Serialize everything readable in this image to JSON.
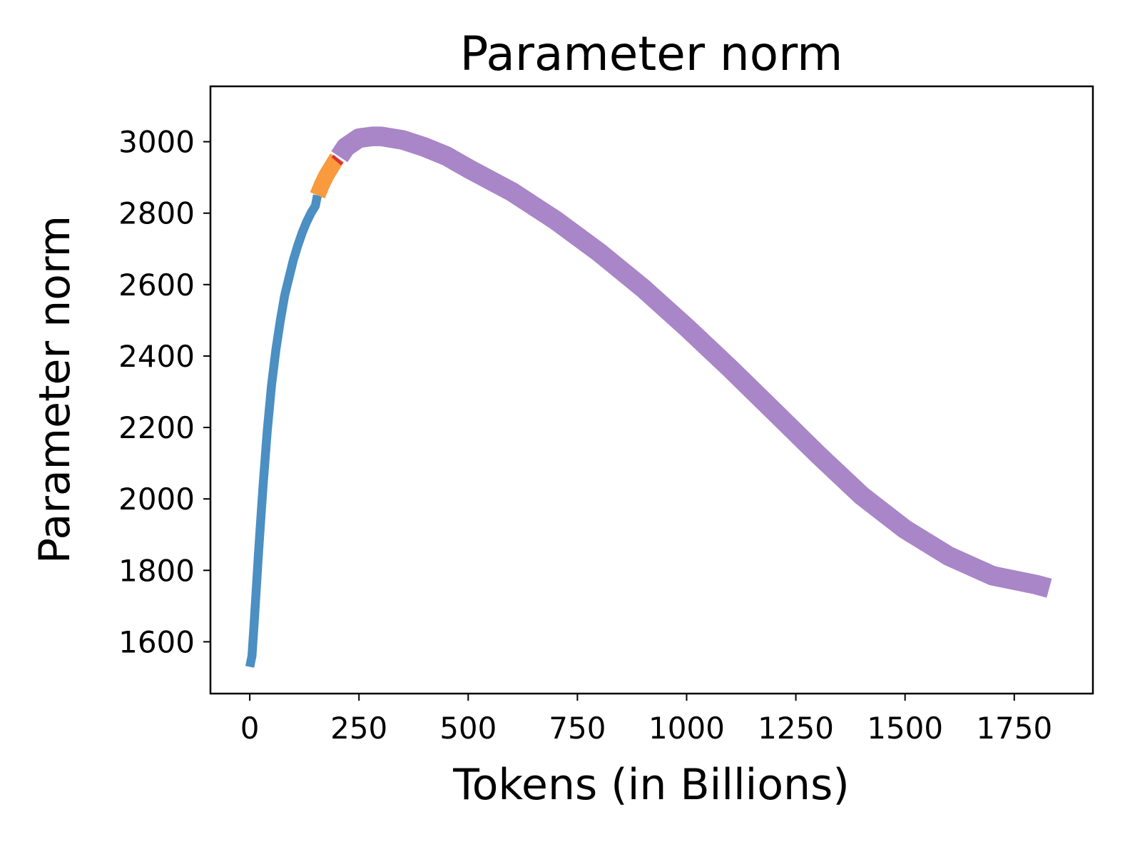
{
  "chart_data": {
    "type": "line",
    "title": "Parameter norm",
    "xlabel": "Tokens (in Billions)",
    "ylabel": "Parameter norm",
    "xlim": [
      -90,
      1930
    ],
    "ylim": [
      1455,
      3155
    ],
    "xticks": [
      0,
      250,
      500,
      750,
      1000,
      1250,
      1500,
      1750
    ],
    "yticks": [
      1600,
      1800,
      2000,
      2200,
      2400,
      2600,
      2800,
      3000
    ],
    "xtick_labels": [
      "0",
      "250",
      "500",
      "750",
      "1000",
      "1250",
      "1500",
      "1750"
    ],
    "ytick_labels": [
      "1600",
      "1800",
      "2000",
      "2200",
      "2400",
      "2600",
      "2800",
      "3000"
    ],
    "grid": false,
    "legend": "none",
    "series": [
      {
        "color": "#4b8fc3",
        "band_width": 25,
        "x": [
          0,
          5,
          10,
          20,
          30,
          40,
          50,
          60,
          70,
          80,
          90,
          100,
          110,
          120,
          130,
          140,
          150,
          155
        ],
        "y": [
          1530,
          1560,
          1650,
          1850,
          2030,
          2190,
          2320,
          2420,
          2500,
          2570,
          2620,
          2670,
          2710,
          2745,
          2775,
          2800,
          2820,
          2850
        ]
      },
      {
        "color": "#f99a3e",
        "band_width": 45,
        "x": [
          155,
          165,
          175,
          185,
          195,
          200
        ],
        "y": [
          2850,
          2880,
          2905,
          2925,
          2945,
          2955
        ]
      },
      {
        "color": "#d6323c",
        "band_width": 35,
        "x": [
          198,
          203
        ],
        "y": [
          2945,
          2952
        ]
      },
      {
        "color": "#a886c8",
        "band_width": 55,
        "x": [
          205,
          220,
          250,
          280,
          300,
          350,
          400,
          450,
          500,
          600,
          700,
          800,
          900,
          1000,
          1100,
          1200,
          1300,
          1400,
          1500,
          1600,
          1700,
          1800,
          1830
        ],
        "y": [
          2958,
          2985,
          3010,
          3015,
          3015,
          3005,
          2985,
          2960,
          2925,
          2860,
          2780,
          2690,
          2590,
          2480,
          2365,
          2245,
          2125,
          2010,
          1915,
          1840,
          1785,
          1760,
          1750
        ]
      }
    ]
  }
}
